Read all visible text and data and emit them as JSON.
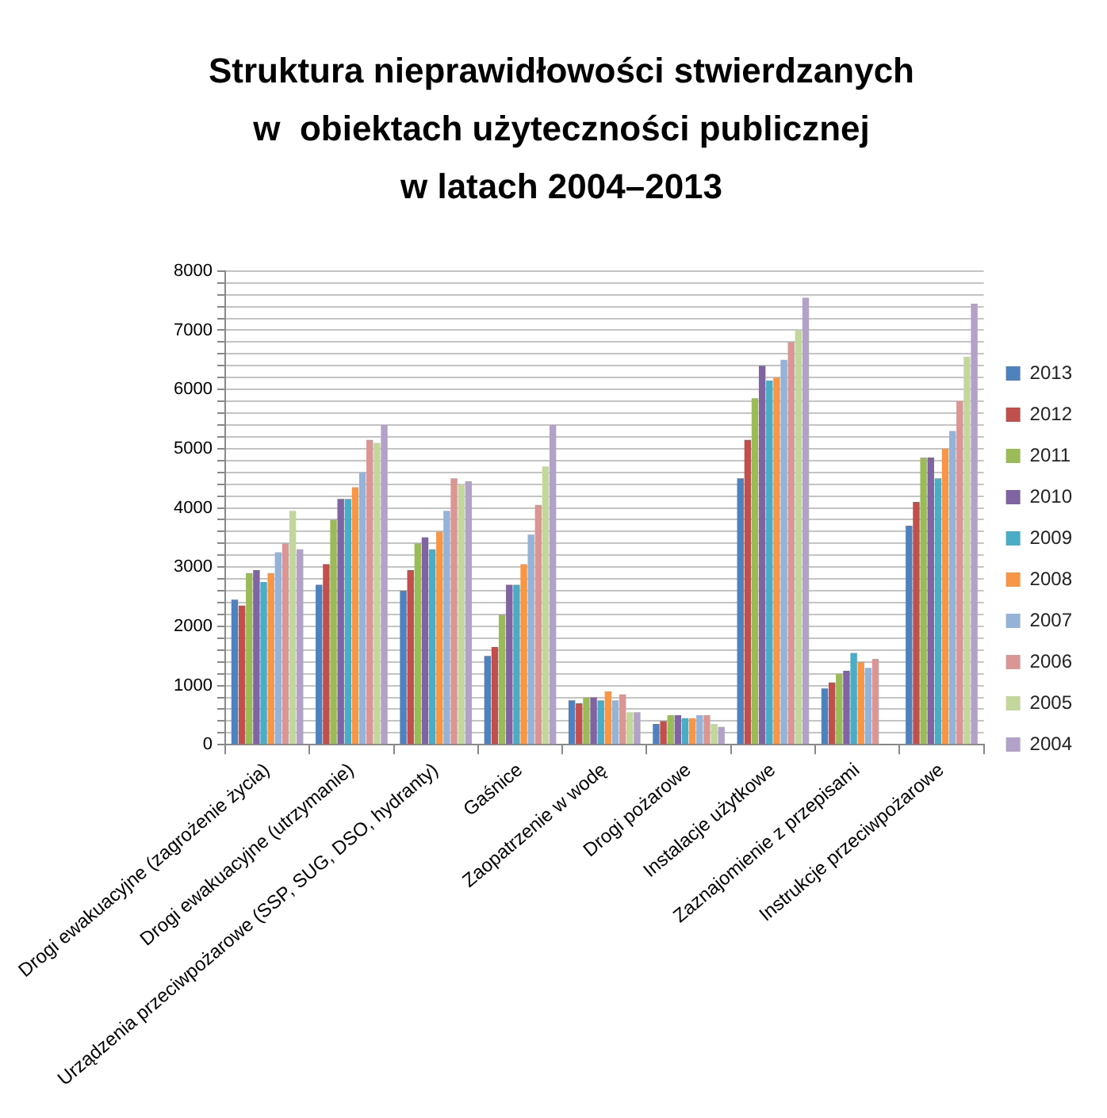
{
  "chart_data": {
    "type": "bar",
    "title": "Struktura nieprawidłowości stwierdzanych\nw  obiektach użyteczności publicznej\nw latach 2004–2013",
    "categories": [
      "Drogi ewakuacyjne (zagrożenie życia)",
      "Drogi ewakuacyjne (utrzymanie)",
      "Urządzenia przeciwpożarowe (SSP, SUG, DSO, hydranty)",
      "Gaśnice",
      "Zaopatrzenie w wodę",
      "Drogi pożarowe",
      "Instalacje użytkowe",
      "Zaznajomienie z przepisami",
      "Instrukcje przeciwpożarowe"
    ],
    "series": [
      {
        "name": "2013",
        "color": "#4f81bd",
        "values": [
          2450,
          2700,
          2600,
          1500,
          750,
          350,
          4500,
          950,
          3700
        ]
      },
      {
        "name": "2012",
        "color": "#c0504d",
        "values": [
          2350,
          3050,
          2950,
          1650,
          700,
          400,
          5150,
          1050,
          4100
        ]
      },
      {
        "name": "2011",
        "color": "#9bbb59",
        "values": [
          2900,
          3800,
          3400,
          2200,
          800,
          500,
          5850,
          1200,
          4850
        ]
      },
      {
        "name": "2010",
        "color": "#8064a2",
        "values": [
          2950,
          4150,
          3500,
          2700,
          800,
          500,
          6400,
          1250,
          4850
        ]
      },
      {
        "name": "2009",
        "color": "#4bacc6",
        "values": [
          2750,
          4150,
          3300,
          2700,
          750,
          450,
          6150,
          1550,
          4500
        ]
      },
      {
        "name": "2008",
        "color": "#f79646",
        "values": [
          2900,
          4350,
          3600,
          3050,
          900,
          450,
          6200,
          1400,
          5000
        ]
      },
      {
        "name": "2007",
        "color": "#95b3d7",
        "values": [
          3250,
          4600,
          3950,
          3550,
          750,
          500,
          6500,
          1300,
          5300
        ]
      },
      {
        "name": "2006",
        "color": "#d99694",
        "values": [
          3400,
          5150,
          4500,
          4050,
          850,
          500,
          6800,
          1450,
          5800
        ]
      },
      {
        "name": "2005",
        "color": "#c3d69b",
        "values": [
          3950,
          5100,
          4400,
          4700,
          550,
          350,
          7000,
          null,
          6550
        ]
      },
      {
        "name": "2004",
        "color": "#b3a2c7",
        "values": [
          3300,
          5400,
          4450,
          5400,
          550,
          300,
          7550,
          null,
          7450
        ]
      }
    ],
    "ylim": [
      0,
      8000
    ],
    "yticks": [
      0,
      {
        "value": 200,
        "label": null
      },
      {
        "value": 400,
        "label": null
      },
      {
        "value": 600,
        "label": null
      },
      {
        "value": 800,
        "label": null
      },
      1000,
      {
        "value": 1200,
        "label": null
      },
      {
        "value": 1400,
        "label": null
      },
      {
        "value": 1600,
        "label": null
      },
      {
        "value": 1800,
        "label": null
      },
      2000,
      {
        "value": 2200,
        "label": null
      },
      {
        "value": 2400,
        "label": null
      },
      {
        "value": 2600,
        "label": null
      },
      {
        "value": 2800,
        "label": null
      },
      3000,
      {
        "value": 3200,
        "label": null
      },
      {
        "value": 3400,
        "label": null
      },
      {
        "value": 3600,
        "label": null
      },
      {
        "value": 3800,
        "label": null
      },
      4000,
      {
        "value": 4200,
        "label": null
      },
      {
        "value": 4400,
        "label": null
      },
      {
        "value": 4600,
        "label": null
      },
      {
        "value": 4800,
        "label": null
      },
      5000,
      {
        "value": 5200,
        "label": null
      },
      {
        "value": 5400,
        "label": null
      },
      {
        "value": 5600,
        "label": null
      },
      {
        "value": 5800,
        "label": null
      },
      6000,
      {
        "value": 6200,
        "label": null
      },
      {
        "value": 6400,
        "label": null
      },
      {
        "value": 6600,
        "label": null
      },
      {
        "value": 6800,
        "label": null
      },
      7000,
      {
        "value": 7200,
        "label": null
      },
      {
        "value": 7400,
        "label": null
      },
      {
        "value": 7600,
        "label": null
      },
      {
        "value": 7800,
        "label": null
      },
      8000
    ],
    "grid": "y",
    "legend": "right"
  }
}
